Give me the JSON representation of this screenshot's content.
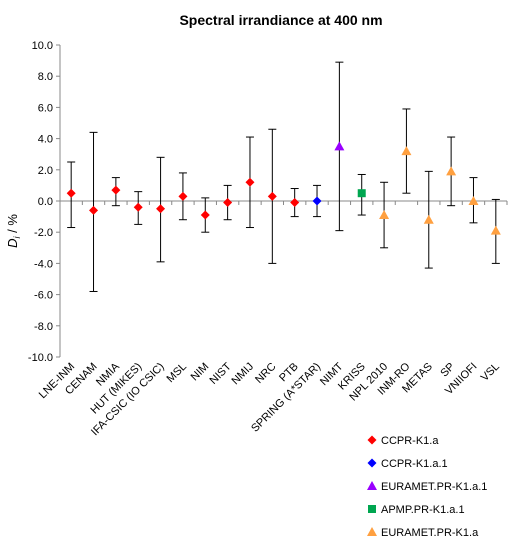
{
  "chart_data": {
    "type": "scatter",
    "title": "Spectral irrandiance at 400 nm",
    "ylabel": "D_i / %",
    "ylabel_main": "D",
    "ylabel_sub": "i",
    "ylabel_unit": " / %",
    "ylim": [
      -10,
      10
    ],
    "yticks": [
      "10.0",
      "8.0",
      "6.0",
      "4.0",
      "2.0",
      "0.0",
      "-2.0",
      "-4.0",
      "-6.0",
      "-8.0",
      "-10.0"
    ],
    "grid": false,
    "legend_position": "bottom-right",
    "categories": [
      "LNE-INM",
      "CENAM",
      "NMIA",
      "HUT (MIKES)",
      "IFA-CSIC (IO CSIC)",
      "MSL",
      "NIM",
      "NIST",
      "NMIJ",
      "NRC",
      "PTB",
      "SPRING (A*STAR)",
      "NIMT",
      "KRISS",
      "NPL 2010",
      "INM-RO",
      "METAS",
      "SP",
      "VNIIOFI",
      "VSL"
    ],
    "series": [
      {
        "name": "CCPR-K1.a",
        "color": "#ff0000",
        "marker": "diamond",
        "points": [
          {
            "x": "LNE-INM",
            "y": 0.5,
            "lo": -1.7,
            "hi": 2.5
          },
          {
            "x": "CENAM",
            "y": -0.6,
            "lo": -5.8,
            "hi": 4.4
          },
          {
            "x": "NMIA",
            "y": 0.7,
            "lo": -0.3,
            "hi": 1.5
          },
          {
            "x": "HUT (MIKES)",
            "y": -0.4,
            "lo": -1.5,
            "hi": 0.6
          },
          {
            "x": "IFA-CSIC (IO CSIC)",
            "y": -0.5,
            "lo": -3.9,
            "hi": 2.8
          },
          {
            "x": "MSL",
            "y": 0.3,
            "lo": -1.2,
            "hi": 1.8
          },
          {
            "x": "NIM",
            "y": -0.9,
            "lo": -2.0,
            "hi": 0.2
          },
          {
            "x": "NIST",
            "y": -0.1,
            "lo": -1.2,
            "hi": 1.0
          },
          {
            "x": "NMIJ",
            "y": 1.2,
            "lo": -1.7,
            "hi": 4.1
          },
          {
            "x": "NRC",
            "y": 0.3,
            "lo": -4.0,
            "hi": 4.6
          },
          {
            "x": "PTB",
            "y": -0.1,
            "lo": -1.0,
            "hi": 0.8
          }
        ]
      },
      {
        "name": "CCPR-K1.a.1",
        "color": "#0000ff",
        "marker": "diamond",
        "points": [
          {
            "x": "SPRING (A*STAR)",
            "y": 0.0,
            "lo": -1.0,
            "hi": 1.0
          }
        ]
      },
      {
        "name": "EURAMET.PR-K1.a.1",
        "color": "#9900ff",
        "marker": "triangle",
        "points": [
          {
            "x": "NIMT",
            "y": 3.5,
            "lo": -1.9,
            "hi": 8.9
          }
        ]
      },
      {
        "name": "APMP.PR-K1.a.1",
        "color": "#00a650",
        "marker": "square",
        "points": [
          {
            "x": "KRISS",
            "y": 0.5,
            "lo": -0.9,
            "hi": 1.7
          }
        ]
      },
      {
        "name": "EURAMET.PR-K1.a",
        "color": "#ffa040",
        "marker": "triangle",
        "points": [
          {
            "x": "NPL 2010",
            "y": -0.9,
            "lo": -3.0,
            "hi": 1.2
          },
          {
            "x": "INM-RO",
            "y": 3.2,
            "lo": 0.5,
            "hi": 5.9
          },
          {
            "x": "METAS",
            "y": -1.2,
            "lo": -4.3,
            "hi": 1.9
          },
          {
            "x": "SP",
            "y": 1.9,
            "lo": -0.3,
            "hi": 4.1
          },
          {
            "x": "VNIIOFI",
            "y": 0.0,
            "lo": -1.4,
            "hi": 1.5
          },
          {
            "x": "VSL",
            "y": -1.9,
            "lo": -4.0,
            "hi": 0.1
          }
        ]
      }
    ]
  }
}
